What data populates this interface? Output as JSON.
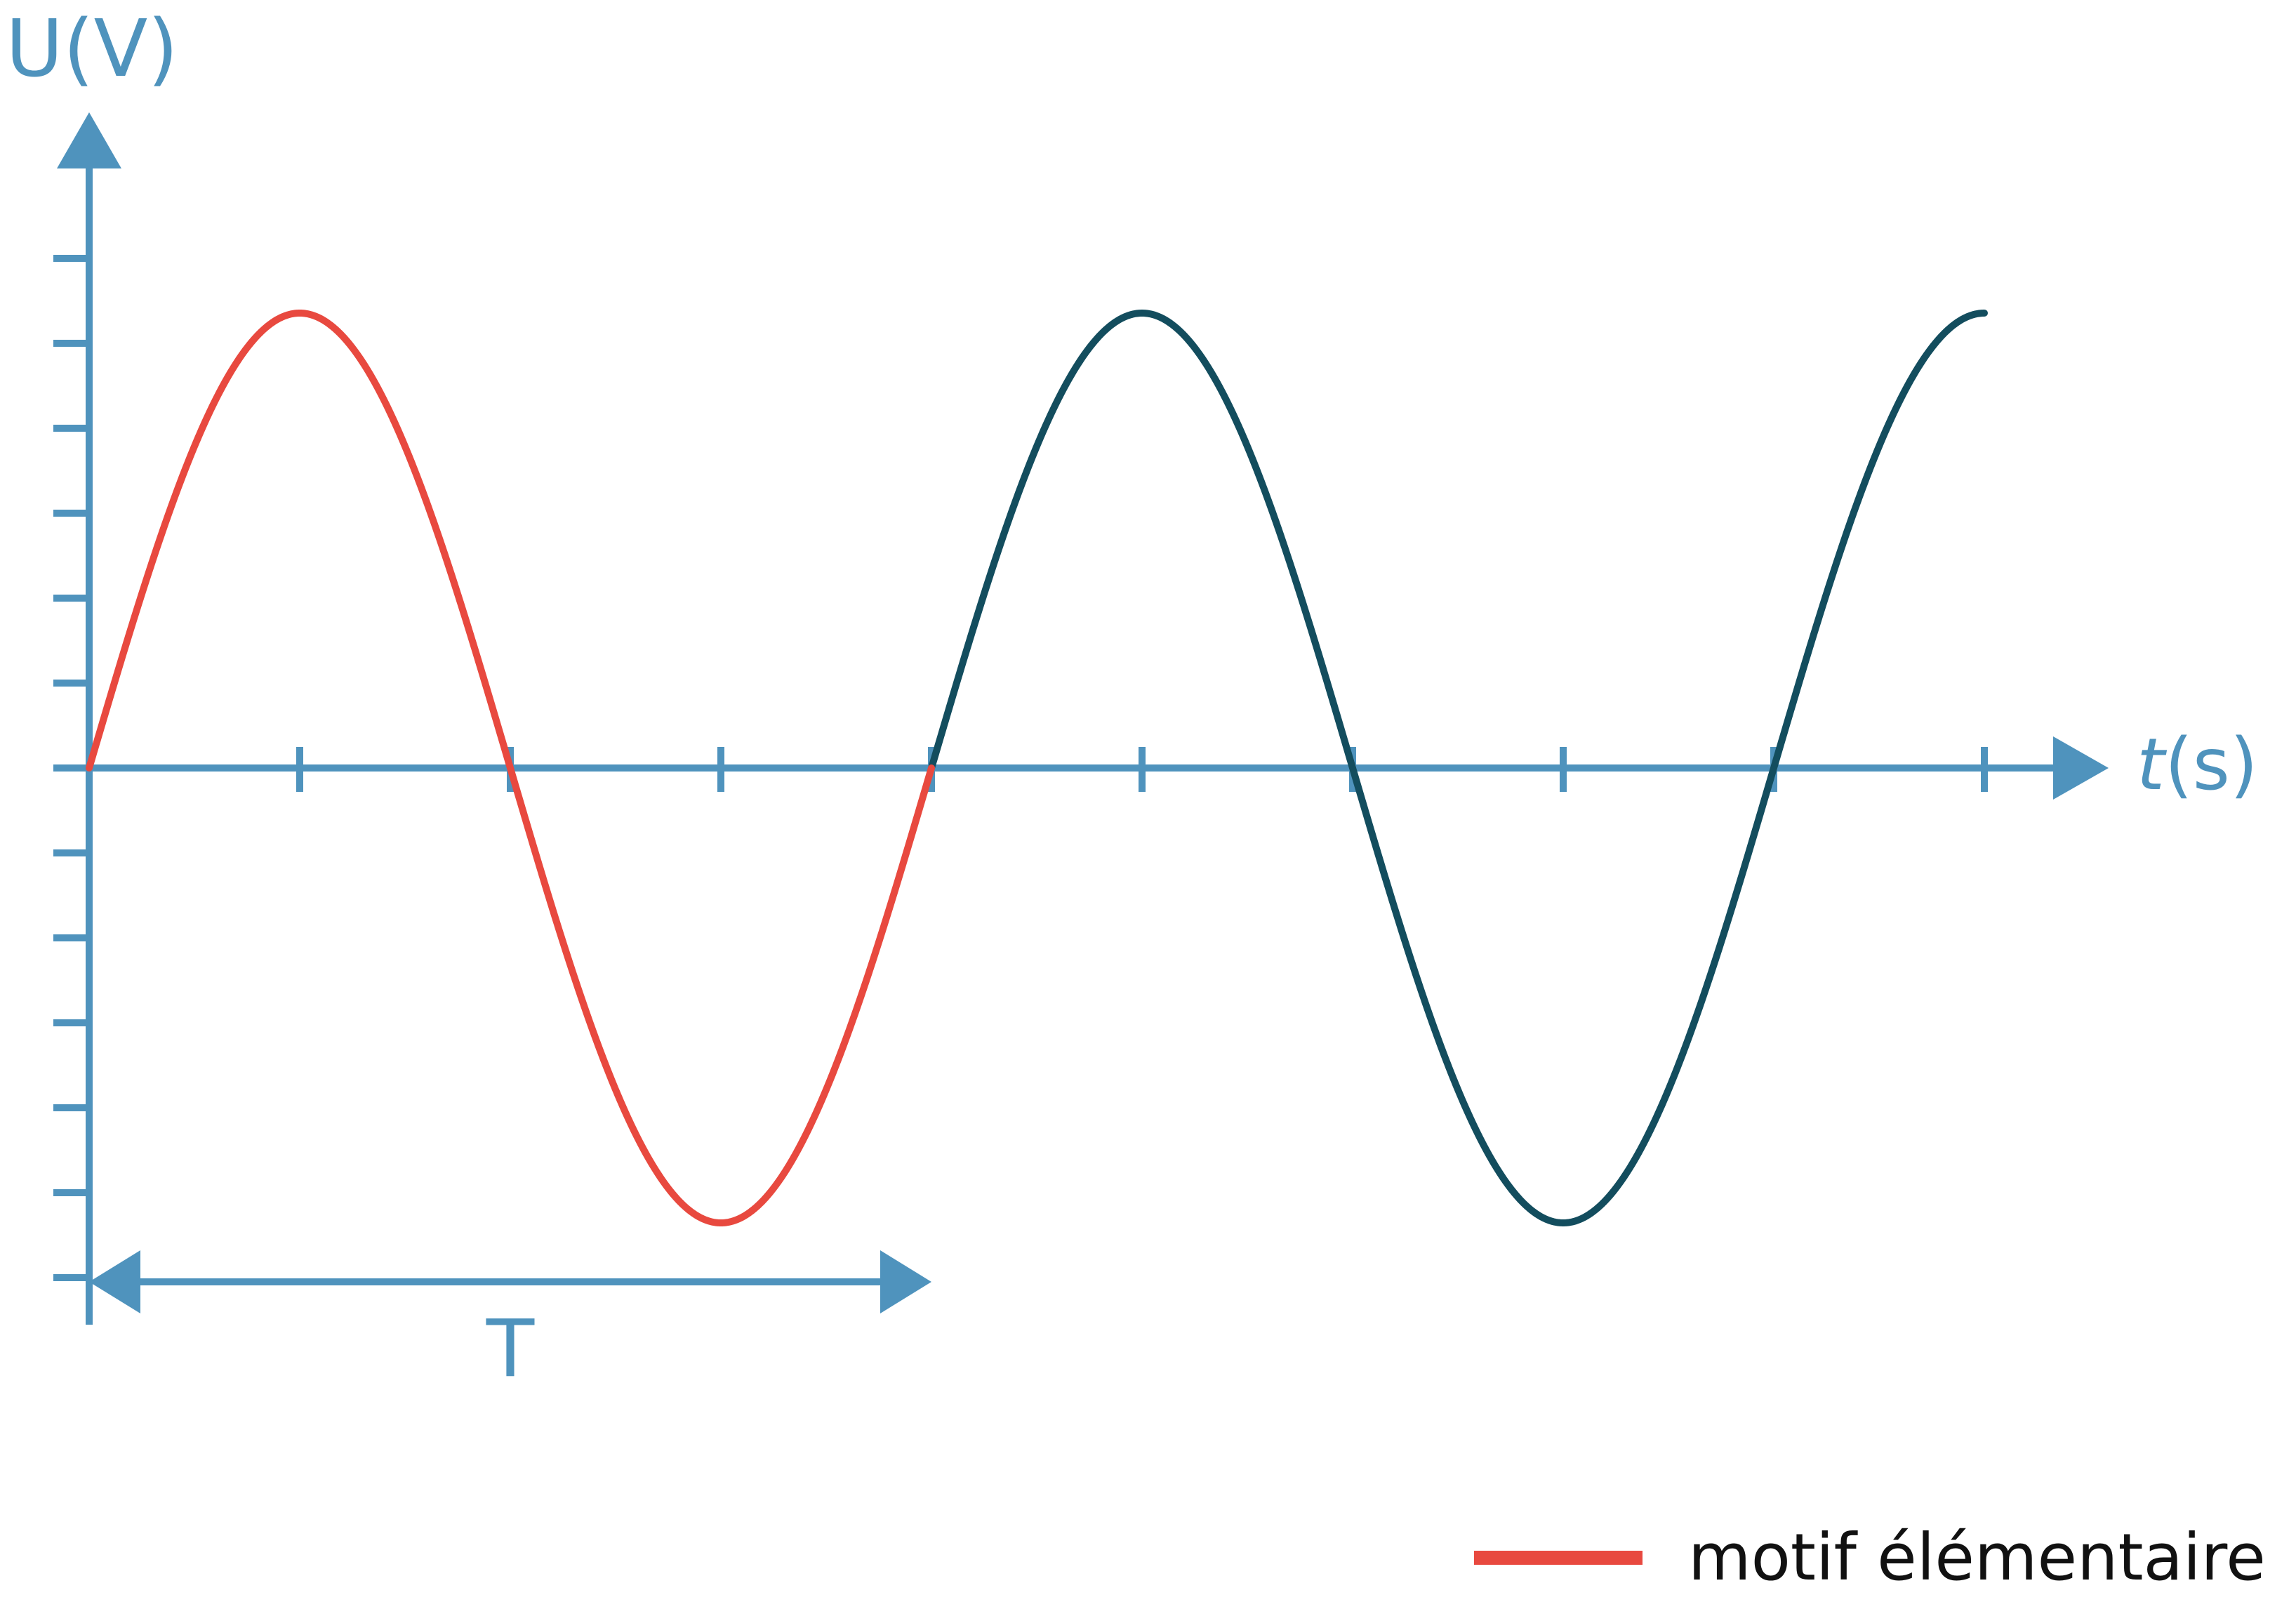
{
  "chart_data": {
    "type": "line",
    "title": "",
    "ylabel": "U(V)",
    "xlabel_var": "t",
    "xlabel_unit": "(s)",
    "grid": false,
    "legend": {
      "position": "bottom-right",
      "label": "motif élémentaire",
      "color": "#e8493f"
    },
    "period_label": "T",
    "x_ticks": [
      0.5,
      1,
      1.5,
      2,
      2.5,
      3,
      3.5,
      4,
      4.5
    ],
    "y_ticks_positive": 6,
    "y_ticks_negative": 6,
    "series": [
      {
        "function": "sine",
        "amplitude": 1,
        "period": 2,
        "x_start": 0,
        "x_end": 4.5
      }
    ],
    "highlight_range": [
      0,
      2
    ],
    "colors": {
      "axis": "#4f93bd",
      "curve": "#134d5e",
      "highlight": "#e8493f",
      "legend_text": "#111111"
    }
  }
}
